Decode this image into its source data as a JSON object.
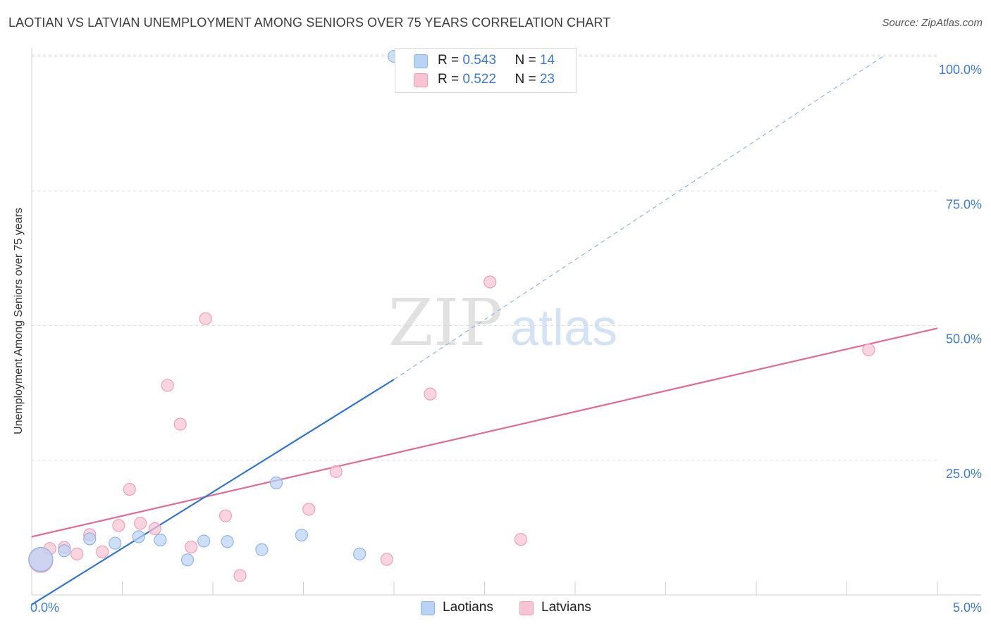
{
  "title": "LAOTIAN VS LATVIAN UNEMPLOYMENT AMONG SENIORS OVER 75 YEARS CORRELATION CHART",
  "source": "Source: ZipAtlas.com",
  "watermark": {
    "zip": "ZIP",
    "atlas": "atlas"
  },
  "colors": {
    "blue_fill": "#b9d3f5",
    "blue_stroke": "#8fb4e6",
    "blue_line": "#2f74d0",
    "pink_fill": "#f8c3d3",
    "pink_stroke": "#ee9fb8",
    "pink_line": "#e06b96",
    "tick_text": "#3b7bd4",
    "grid": "#dcdcdc"
  },
  "legend_top": {
    "rows": [
      {
        "r_label": "R = ",
        "r_value": "0.543",
        "n_label": "N = ",
        "n_value": "14"
      },
      {
        "r_label": "R = ",
        "r_value": "0.522",
        "n_label": "N = ",
        "n_value": "23"
      }
    ]
  },
  "legend_bottom": {
    "laotians": "Laotians",
    "latvians": "Latvians"
  },
  "chart_data": {
    "type": "scatter",
    "title": "LAOTIAN VS LATVIAN UNEMPLOYMENT AMONG SENIORS OVER 75 YEARS CORRELATION CHART",
    "xlabel": "",
    "ylabel": "Unemployment Among Seniors over 75 years",
    "xlim": [
      0,
      5
    ],
    "ylim": [
      0,
      100
    ],
    "x_tick_labels": [
      "0.0%",
      "5.0%"
    ],
    "y_ticks": [
      25,
      50,
      75,
      100
    ],
    "y_tick_labels": [
      "25.0%",
      "50.0%",
      "75.0%",
      "100.0%"
    ],
    "grid": true,
    "series": [
      {
        "name": "Laotians",
        "color": "#b9d3f5",
        "points": [
          {
            "x": 0.05,
            "y": 6.6,
            "size": "large"
          },
          {
            "x": 0.18,
            "y": 8.2
          },
          {
            "x": 0.32,
            "y": 10.4
          },
          {
            "x": 0.46,
            "y": 9.6
          },
          {
            "x": 0.59,
            "y": 10.8
          },
          {
            "x": 0.71,
            "y": 10.2
          },
          {
            "x": 0.86,
            "y": 6.5
          },
          {
            "x": 0.95,
            "y": 10.0
          },
          {
            "x": 1.08,
            "y": 9.9
          },
          {
            "x": 1.27,
            "y": 8.4
          },
          {
            "x": 1.35,
            "y": 20.8
          },
          {
            "x": 1.49,
            "y": 11.1
          },
          {
            "x": 1.81,
            "y": 7.6
          },
          {
            "x": 2.0,
            "y": 100.0
          }
        ],
        "trendline": {
          "x0": 0.0,
          "y0": -1.8,
          "x1": 2.0,
          "y1": 40.0,
          "x_dash_end": 4.7,
          "y_dash_end": 100.0
        }
      },
      {
        "name": "Latvians",
        "color": "#f8c3d3",
        "points": [
          {
            "x": 0.05,
            "y": 6.4,
            "size": "large"
          },
          {
            "x": 0.1,
            "y": 8.6
          },
          {
            "x": 0.18,
            "y": 8.8
          },
          {
            "x": 0.25,
            "y": 7.6
          },
          {
            "x": 0.32,
            "y": 11.2
          },
          {
            "x": 0.39,
            "y": 8.0
          },
          {
            "x": 0.48,
            "y": 12.9
          },
          {
            "x": 0.54,
            "y": 19.6
          },
          {
            "x": 0.6,
            "y": 13.3
          },
          {
            "x": 0.68,
            "y": 12.3
          },
          {
            "x": 0.75,
            "y": 38.9
          },
          {
            "x": 0.82,
            "y": 31.7
          },
          {
            "x": 0.88,
            "y": 8.9
          },
          {
            "x": 0.96,
            "y": 51.3
          },
          {
            "x": 1.07,
            "y": 14.7
          },
          {
            "x": 1.15,
            "y": 3.6
          },
          {
            "x": 1.53,
            "y": 15.9
          },
          {
            "x": 1.68,
            "y": 22.9
          },
          {
            "x": 1.96,
            "y": 6.6
          },
          {
            "x": 2.2,
            "y": 37.3
          },
          {
            "x": 2.53,
            "y": 58.1
          },
          {
            "x": 2.7,
            "y": 10.3
          },
          {
            "x": 4.62,
            "y": 45.5
          }
        ],
        "trendline": {
          "x0": 0.0,
          "y0": 10.8,
          "x1": 5.0,
          "y1": 49.5
        }
      }
    ]
  }
}
